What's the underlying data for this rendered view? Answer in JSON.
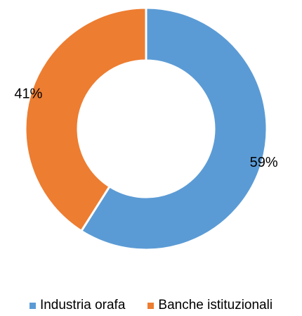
{
  "chart_data": {
    "type": "pie",
    "variant": "donut",
    "categories": [
      "Industria orafa",
      "Banche istituzionali"
    ],
    "values": [
      59,
      41
    ],
    "data_labels": [
      "59%",
      "41%"
    ],
    "colors": [
      "#5b9bd5",
      "#ed7d31"
    ],
    "legend_position": "bottom",
    "title": "",
    "legend": [
      {
        "label": "Industria orafa",
        "color": "#5b9bd5"
      },
      {
        "label": "Banche istituzionali",
        "color": "#ed7d31"
      }
    ]
  }
}
